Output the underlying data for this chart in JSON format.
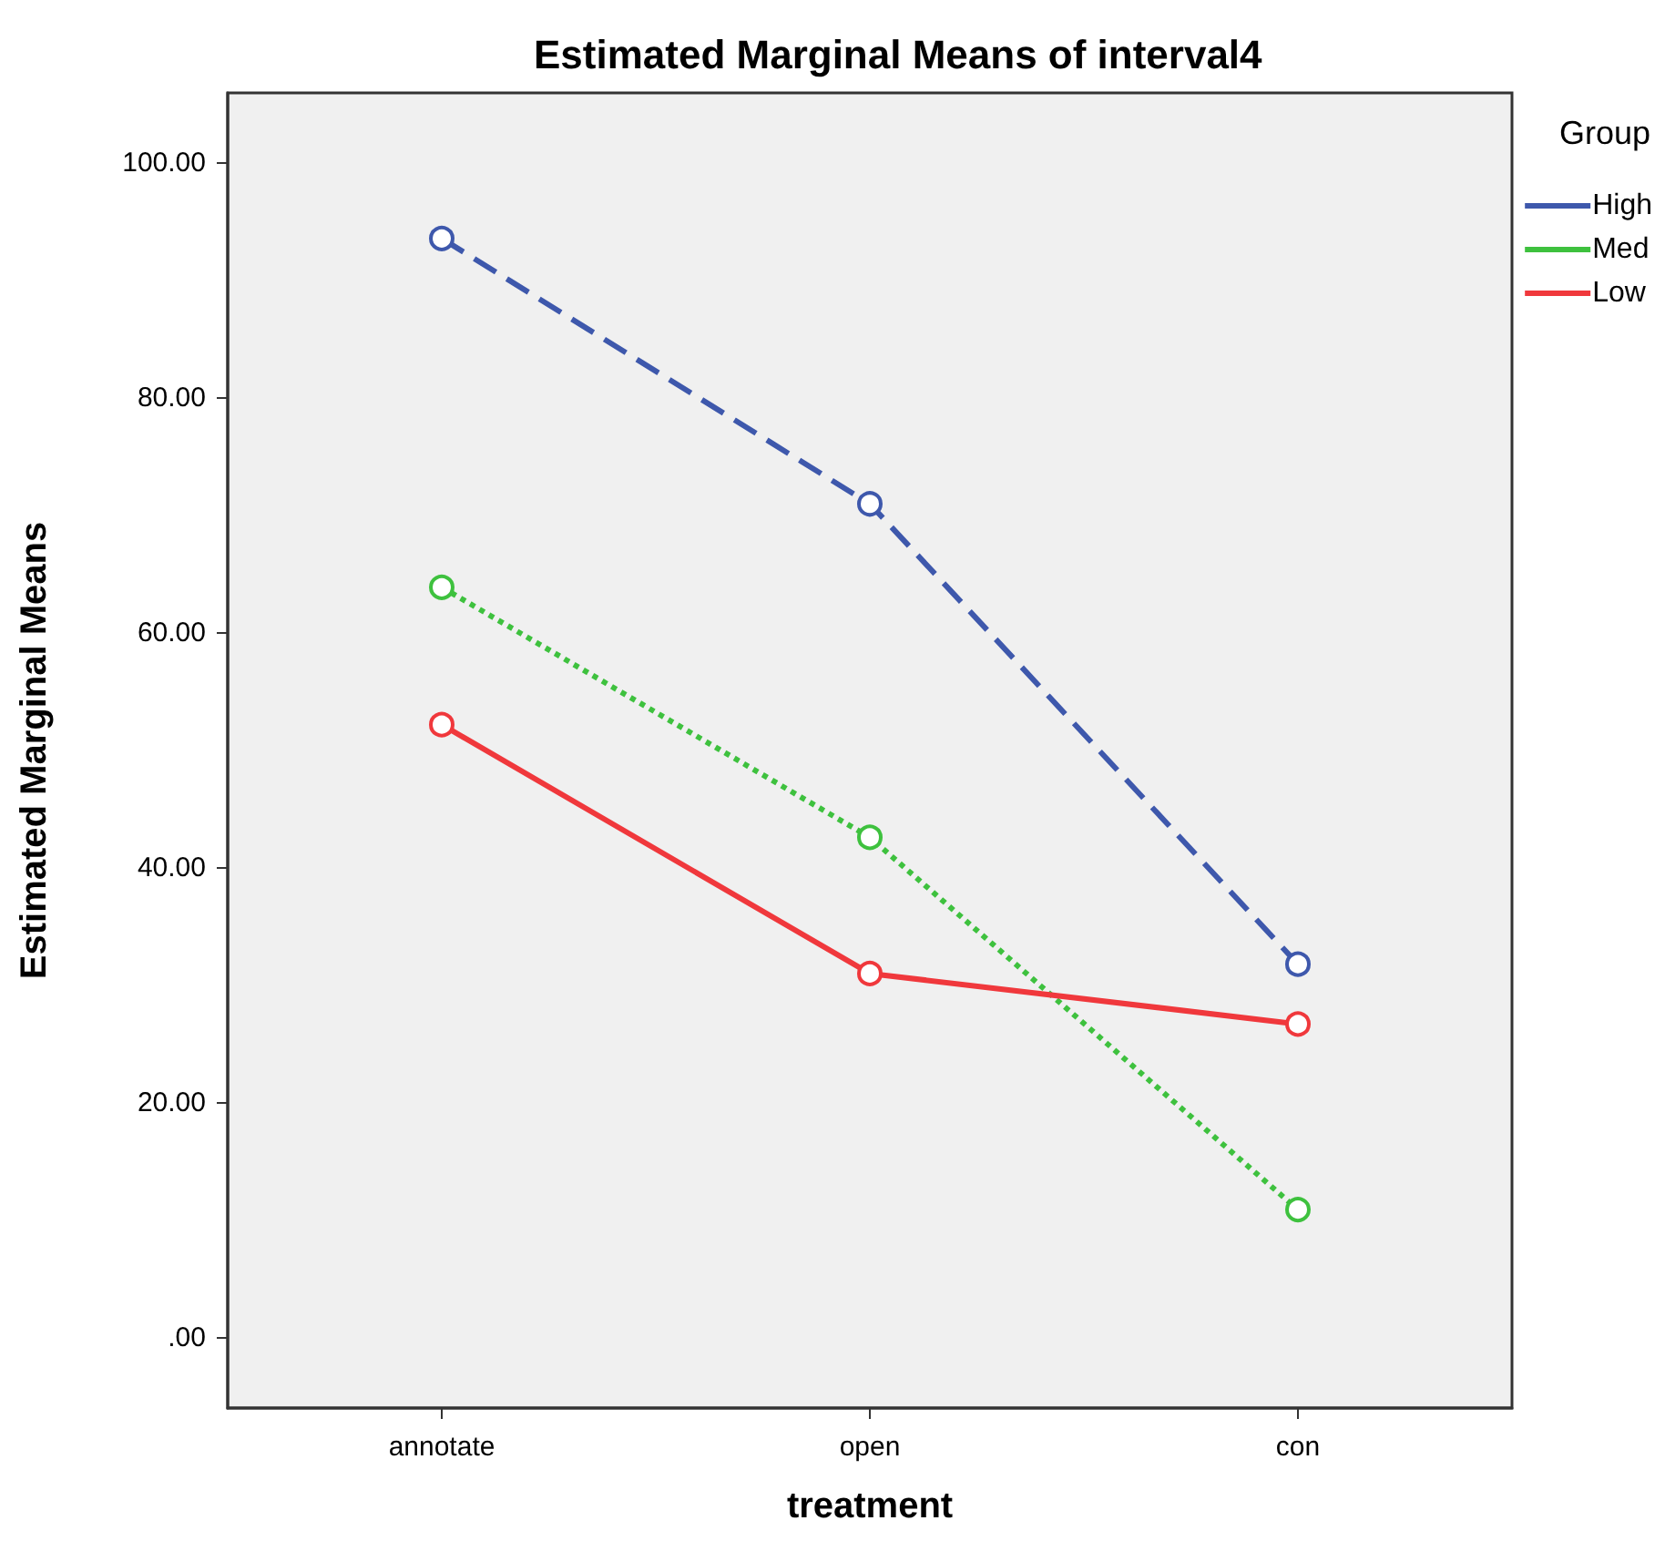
{
  "chart_data": {
    "type": "line",
    "title": "Estimated Marginal Means of interval4",
    "xlabel": "treatment",
    "ylabel": "Estimated Marginal Means",
    "legend_title": "Group",
    "categories": [
      "annotate",
      "open",
      "con"
    ],
    "series": [
      {
        "name": "High",
        "color": "#3e58ac",
        "line_style": "dashed",
        "values": [
          93.6,
          71.0,
          31.8
        ]
      },
      {
        "name": "Med",
        "color": "#3ec13e",
        "line_style": "dotted",
        "values": [
          63.9,
          42.6,
          10.9
        ]
      },
      {
        "name": "Low",
        "color": "#f0383c",
        "line_style": "solid",
        "values": [
          52.2,
          31.0,
          26.7
        ]
      }
    ],
    "ylim": [
      -6,
      106
    ],
    "yticks": [
      {
        "value": 0,
        "label": ".00"
      },
      {
        "value": 20,
        "label": "20.00"
      },
      {
        "value": 40,
        "label": "40.00"
      },
      {
        "value": 60,
        "label": "60.00"
      },
      {
        "value": 80,
        "label": "80.00"
      },
      {
        "value": 100,
        "label": "100.00"
      }
    ],
    "grid": false,
    "legend": "top right",
    "marker": "circle"
  }
}
